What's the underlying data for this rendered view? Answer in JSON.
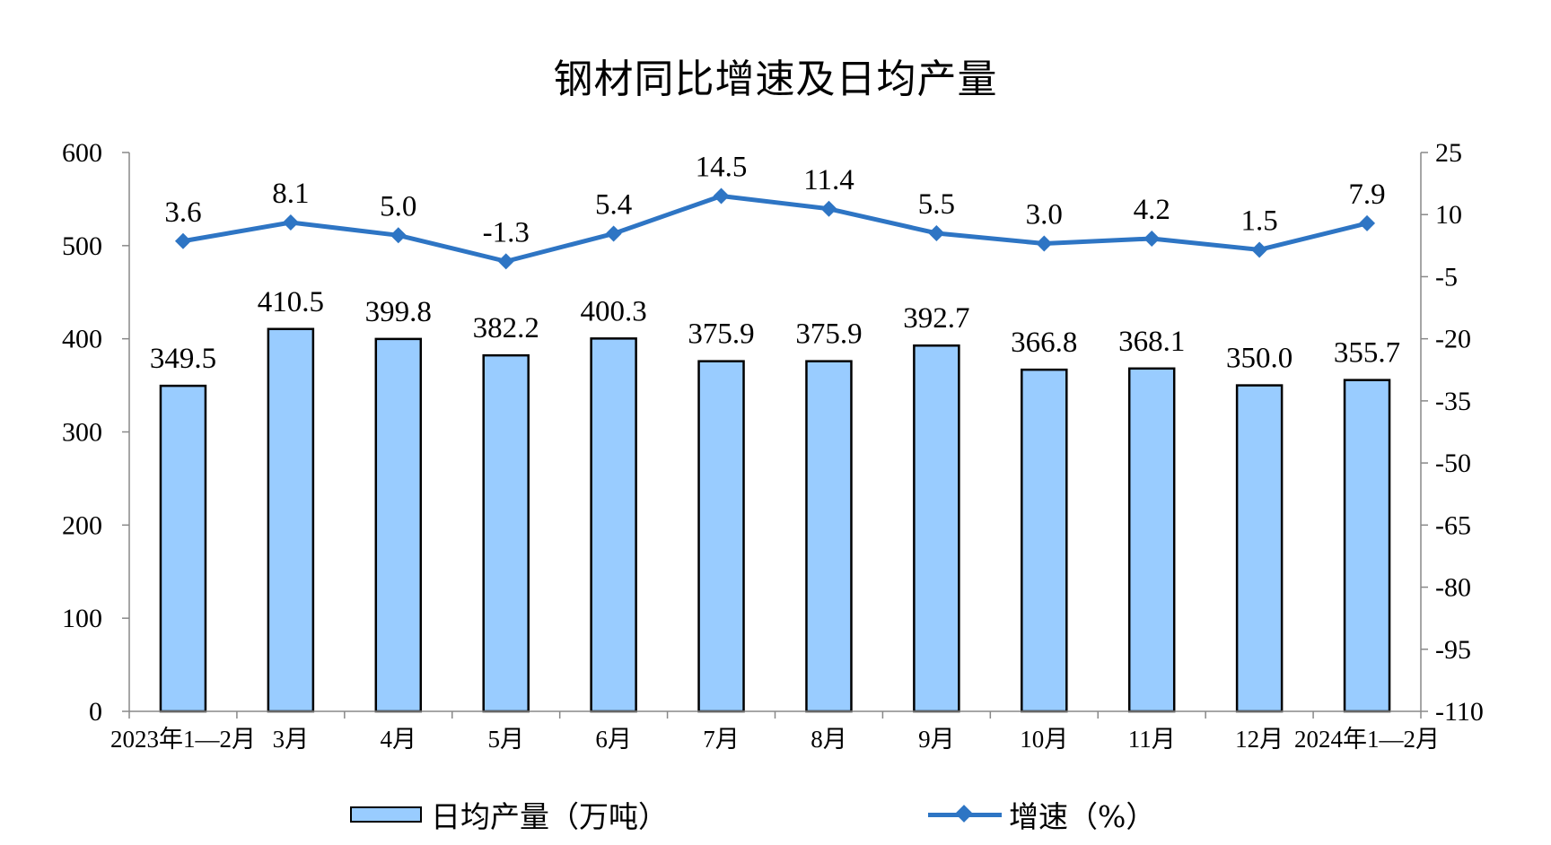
{
  "chart_data": {
    "type": "bar",
    "title": "钢材同比增速及日均产量",
    "categories": [
      "2023年1—2月",
      "3月",
      "4月",
      "5月",
      "6月",
      "7月",
      "8月",
      "9月",
      "10月",
      "11月",
      "12月",
      "2024年1—2月"
    ],
    "series": [
      {
        "name": "日均产量（万吨）",
        "type": "bar",
        "axis": "left",
        "values": [
          349.5,
          410.5,
          399.8,
          382.2,
          400.3,
          375.9,
          375.9,
          392.7,
          366.8,
          368.1,
          350.0,
          355.7
        ],
        "labels": [
          "349.5",
          "410.5",
          "399.8",
          "382.2",
          "400.3",
          "375.9",
          "375.9",
          "392.7",
          "366.8",
          "368.1",
          "350.0",
          "355.7"
        ]
      },
      {
        "name": "增速（%）",
        "type": "line",
        "axis": "right",
        "values": [
          3.6,
          8.1,
          5.0,
          -1.3,
          5.4,
          14.5,
          11.4,
          5.5,
          3.0,
          4.2,
          1.5,
          7.9
        ],
        "labels": [
          "3.6",
          "8.1",
          "5.0",
          "-1.3",
          "5.4",
          "14.5",
          "11.4",
          "5.5",
          "3.0",
          "4.2",
          "1.5",
          "7.9"
        ]
      }
    ],
    "y_left": {
      "ylim": [
        0,
        600
      ],
      "ticks": [
        0,
        100,
        200,
        300,
        400,
        500,
        600
      ]
    },
    "y_right": {
      "ylim": [
        -110,
        25
      ],
      "ticks": [
        -110,
        -95,
        -80,
        -65,
        -50,
        -35,
        -20,
        -5,
        10,
        25
      ]
    },
    "grid": false,
    "legend_position": "bottom",
    "colors": {
      "bar_fill": "#99ccff",
      "bar_stroke": "#000000",
      "line": "#2e75c4"
    }
  }
}
